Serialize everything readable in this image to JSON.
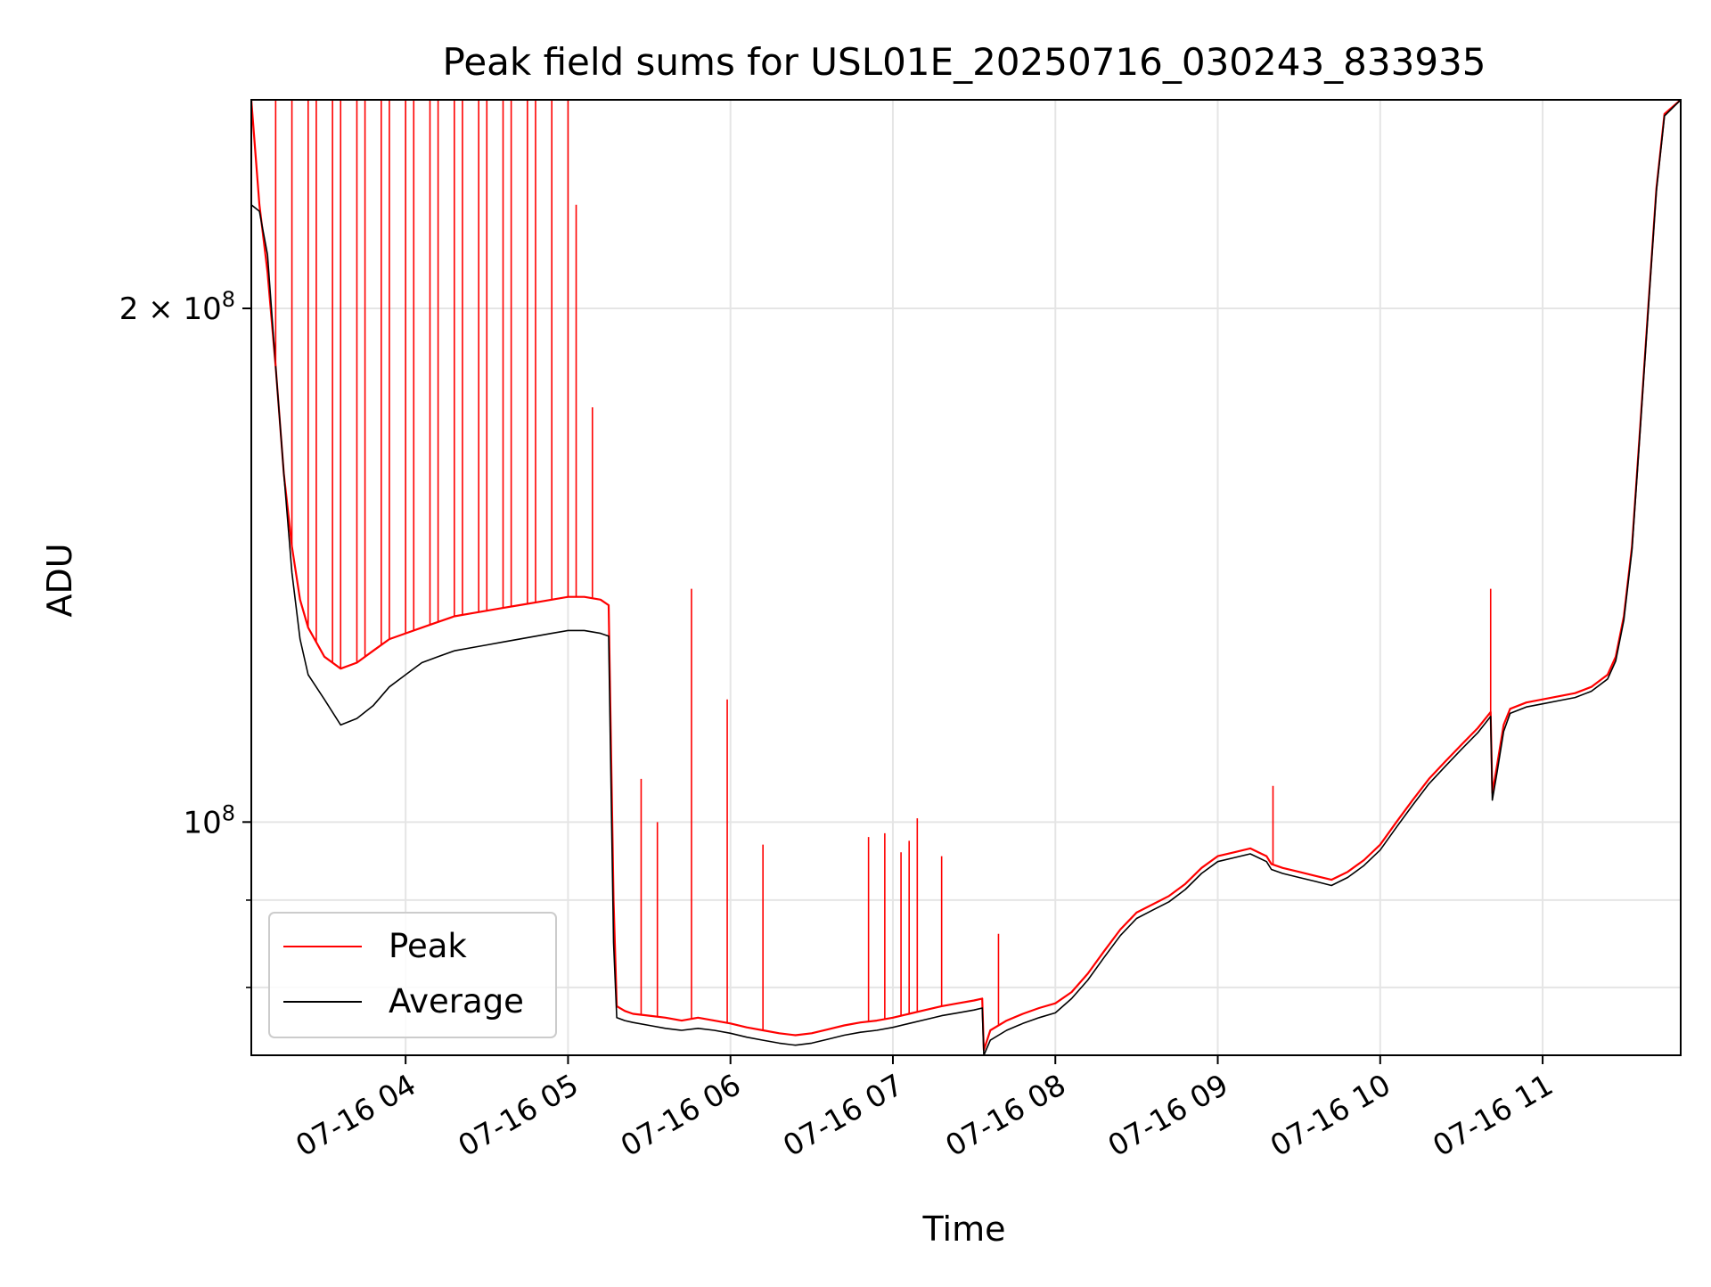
{
  "chart_data": {
    "type": "line",
    "title": "Peak field sums for USL01E_20250716_030243_833935",
    "xlabel": "Time",
    "ylabel": "ADU",
    "yscale": "log",
    "x_unit": "hour",
    "xlim": [
      3.05,
      11.85
    ],
    "ylim": [
      73000000,
      265000000
    ],
    "grid": true,
    "legend_position": "lower-left",
    "x_ticks": [
      {
        "value": 4,
        "label": "07-16 04"
      },
      {
        "value": 5,
        "label": "07-16 05"
      },
      {
        "value": 6,
        "label": "07-16 06"
      },
      {
        "value": 7,
        "label": "07-16 07"
      },
      {
        "value": 8,
        "label": "07-16 08"
      },
      {
        "value": 9,
        "label": "07-16 09"
      },
      {
        "value": 10,
        "label": "07-16 10"
      },
      {
        "value": 11,
        "label": "07-16 11"
      }
    ],
    "y_ticks": [
      {
        "value": 200000000,
        "label_base": "2 × 10",
        "label_exp": "8"
      },
      {
        "value": 100000000,
        "label_base": "10",
        "label_exp": "8"
      }
    ],
    "y_minor_ticks": [
      80000000,
      90000000
    ],
    "series": [
      {
        "name": "Peak",
        "color": "#ff0000",
        "x": [
          3.05,
          3.1,
          3.15,
          3.2,
          3.25,
          3.3,
          3.35,
          3.4,
          3.5,
          3.6,
          3.7,
          3.8,
          3.9,
          4.0,
          4.1,
          4.2,
          4.3,
          4.4,
          4.5,
          4.6,
          4.7,
          4.8,
          4.9,
          5.0,
          5.1,
          5.2,
          5.25,
          5.28,
          5.3,
          5.35,
          5.4,
          5.5,
          5.6,
          5.7,
          5.8,
          5.9,
          6.0,
          6.1,
          6.2,
          6.3,
          6.4,
          6.5,
          6.6,
          6.7,
          6.8,
          6.9,
          7.0,
          7.1,
          7.2,
          7.3,
          7.4,
          7.5,
          7.55,
          7.56,
          7.6,
          7.7,
          7.8,
          7.9,
          8.0,
          8.1,
          8.2,
          8.3,
          8.4,
          8.5,
          8.6,
          8.7,
          8.8,
          8.9,
          9.0,
          9.1,
          9.2,
          9.3,
          9.33,
          9.4,
          9.5,
          9.6,
          9.7,
          9.8,
          9.9,
          10.0,
          10.1,
          10.2,
          10.3,
          10.4,
          10.5,
          10.6,
          10.68,
          10.69,
          10.72,
          10.76,
          10.8,
          10.9,
          11.0,
          11.1,
          11.2,
          11.3,
          11.4,
          11.45,
          11.5,
          11.55,
          11.6,
          11.65,
          11.7,
          11.75,
          11.85
        ],
        "y": [
          265000000,
          230000000,
          210000000,
          185000000,
          160000000,
          145000000,
          135000000,
          130000000,
          125000000,
          123000000,
          124000000,
          126000000,
          128000000,
          129000000,
          130000000,
          131000000,
          132000000,
          132500000,
          133000000,
          133500000,
          134000000,
          134500000,
          135000000,
          135500000,
          135500000,
          135000000,
          134000000,
          90000000,
          78000000,
          77500000,
          77200000,
          77000000,
          76800000,
          76500000,
          76800000,
          76500000,
          76200000,
          75800000,
          75500000,
          75200000,
          75000000,
          75200000,
          75600000,
          76000000,
          76300000,
          76500000,
          76800000,
          77200000,
          77600000,
          78000000,
          78300000,
          78600000,
          78800000,
          73500000,
          75500000,
          76500000,
          77200000,
          77800000,
          78300000,
          79500000,
          81500000,
          84000000,
          86500000,
          88500000,
          89500000,
          90500000,
          92000000,
          94000000,
          95500000,
          96000000,
          96500000,
          95500000,
          94500000,
          94000000,
          93500000,
          93000000,
          92500000,
          93500000,
          95000000,
          97000000,
          100000000,
          103000000,
          106000000,
          108500000,
          111000000,
          113500000,
          116000000,
          104000000,
          108000000,
          114000000,
          116500000,
          117500000,
          118000000,
          118500000,
          119000000,
          120000000,
          122000000,
          125000000,
          132000000,
          145000000,
          170000000,
          200000000,
          235000000,
          260000000,
          265000000
        ]
      },
      {
        "name": "Average",
        "color": "#000000",
        "x": [
          3.05,
          3.1,
          3.15,
          3.2,
          3.25,
          3.3,
          3.35,
          3.4,
          3.5,
          3.6,
          3.7,
          3.8,
          3.9,
          4.0,
          4.1,
          4.2,
          4.3,
          4.4,
          4.5,
          4.6,
          4.7,
          4.8,
          4.9,
          5.0,
          5.1,
          5.2,
          5.25,
          5.28,
          5.3,
          5.35,
          5.4,
          5.5,
          5.6,
          5.7,
          5.8,
          5.9,
          6.0,
          6.1,
          6.2,
          6.3,
          6.4,
          6.5,
          6.6,
          6.7,
          6.8,
          6.9,
          7.0,
          7.1,
          7.2,
          7.3,
          7.4,
          7.5,
          7.55,
          7.56,
          7.6,
          7.7,
          7.8,
          7.9,
          8.0,
          8.1,
          8.2,
          8.3,
          8.4,
          8.5,
          8.6,
          8.7,
          8.8,
          8.9,
          9.0,
          9.1,
          9.2,
          9.3,
          9.33,
          9.4,
          9.5,
          9.6,
          9.7,
          9.8,
          9.9,
          10.0,
          10.1,
          10.2,
          10.3,
          10.4,
          10.5,
          10.6,
          10.68,
          10.69,
          10.72,
          10.76,
          10.8,
          10.9,
          11.0,
          11.1,
          11.2,
          11.3,
          11.4,
          11.45,
          11.5,
          11.55,
          11.6,
          11.65,
          11.7,
          11.75,
          11.85
        ],
        "y": [
          230000000,
          228000000,
          215000000,
          185000000,
          160000000,
          140000000,
          128000000,
          122000000,
          118000000,
          114000000,
          115000000,
          117000000,
          120000000,
          122000000,
          124000000,
          125000000,
          126000000,
          126500000,
          127000000,
          127500000,
          128000000,
          128500000,
          129000000,
          129500000,
          129500000,
          129000000,
          128500000,
          85000000,
          76800000,
          76500000,
          76300000,
          76000000,
          75700000,
          75500000,
          75700000,
          75500000,
          75200000,
          74800000,
          74500000,
          74200000,
          74000000,
          74200000,
          74600000,
          75000000,
          75300000,
          75500000,
          75800000,
          76200000,
          76600000,
          77000000,
          77300000,
          77600000,
          77800000,
          73000000,
          74500000,
          75500000,
          76200000,
          76800000,
          77300000,
          78800000,
          80800000,
          83300000,
          85800000,
          87800000,
          88800000,
          89800000,
          91300000,
          93300000,
          94800000,
          95300000,
          95800000,
          94800000,
          93800000,
          93300000,
          92800000,
          92300000,
          91800000,
          92800000,
          94300000,
          96300000,
          99300000,
          102300000,
          105300000,
          107800000,
          110300000,
          112800000,
          115300000,
          103000000,
          107000000,
          113000000,
          115800000,
          116800000,
          117300000,
          117800000,
          118300000,
          119300000,
          121300000,
          124300000,
          131300000,
          144300000,
          169300000,
          199300000,
          234300000,
          259300000,
          265000000
        ]
      }
    ],
    "spikes": {
      "series": "Peak",
      "x": [
        3.2,
        3.3,
        3.4,
        3.45,
        3.55,
        3.6,
        3.7,
        3.75,
        3.85,
        3.9,
        4.0,
        4.05,
        4.15,
        4.2,
        4.3,
        4.35,
        4.45,
        4.5,
        4.6,
        4.65,
        4.75,
        4.8,
        4.9,
        5.0,
        5.05,
        5.15,
        5.45,
        5.55,
        5.76,
        5.98,
        6.2,
        6.85,
        6.95,
        7.05,
        7.1,
        7.15,
        7.3,
        7.65,
        9.34,
        10.68
      ],
      "y": [
        265000000,
        265000000,
        265000000,
        265000000,
        265000000,
        265000000,
        265000000,
        265000000,
        265000000,
        265000000,
        265000000,
        265000000,
        265000000,
        265000000,
        265000000,
        265000000,
        265000000,
        265000000,
        265000000,
        265000000,
        265000000,
        265000000,
        265000000,
        265000000,
        230000000,
        175000000,
        106000000,
        100000000,
        137000000,
        118000000,
        97000000,
        98000000,
        98500000,
        96000000,
        97500000,
        100500000,
        95500000,
        86000000,
        105000000,
        137000000
      ]
    }
  }
}
